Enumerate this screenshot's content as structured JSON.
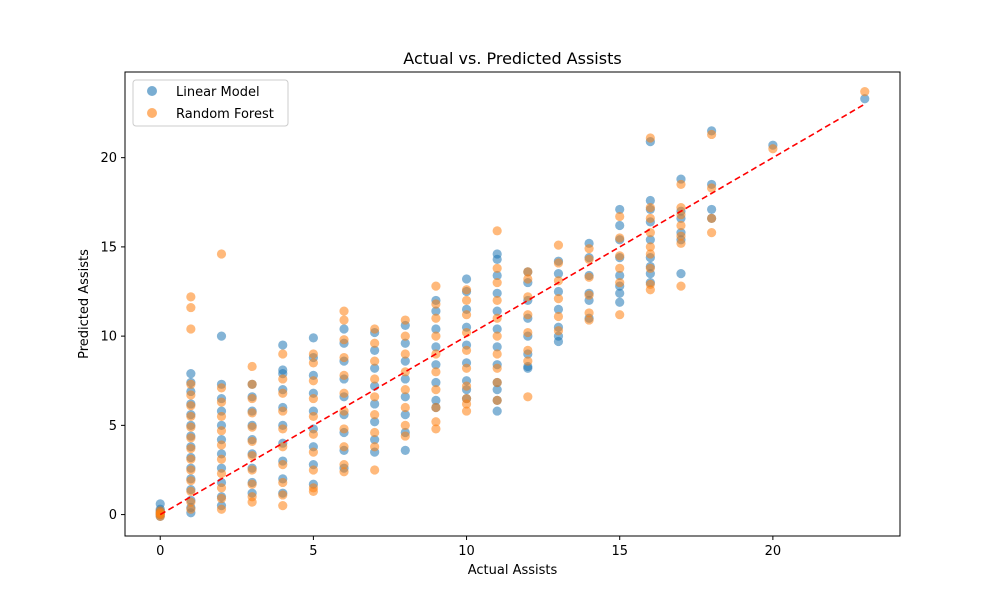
{
  "chart_data": {
    "type": "scatter",
    "title": "Actual vs. Predicted Assists",
    "xlabel": "Actual Assists",
    "ylabel": "Predicted Assists",
    "xlim": [
      -1.15,
      24.15
    ],
    "ylim": [
      -1.2,
      24.8
    ],
    "xticks": [
      0,
      5,
      10,
      15,
      20
    ],
    "yticks": [
      0,
      5,
      10,
      15,
      20
    ],
    "grid": false,
    "legend_position": "top-left",
    "reference_line": {
      "x": [
        0,
        23
      ],
      "y": [
        0,
        23
      ],
      "color": "#ff0000",
      "style": "dashed"
    },
    "series": [
      {
        "name": "Linear Model",
        "color": "#1f77b4",
        "points": [
          [
            0,
            0.6
          ],
          [
            0,
            0.3
          ],
          [
            0,
            0.1
          ],
          [
            0,
            0.0
          ],
          [
            0,
            -0.1
          ],
          [
            0,
            0.2
          ],
          [
            1,
            7.9
          ],
          [
            1,
            7.4
          ],
          [
            1,
            6.9
          ],
          [
            1,
            6.2
          ],
          [
            1,
            5.6
          ],
          [
            1,
            5.0
          ],
          [
            1,
            4.4
          ],
          [
            1,
            3.8
          ],
          [
            1,
            3.2
          ],
          [
            1,
            2.6
          ],
          [
            1,
            2.0
          ],
          [
            1,
            1.4
          ],
          [
            1,
            0.8
          ],
          [
            1,
            0.4
          ],
          [
            1,
            0.1
          ],
          [
            2,
            10.0
          ],
          [
            2,
            7.3
          ],
          [
            2,
            6.5
          ],
          [
            2,
            5.8
          ],
          [
            2,
            5.0
          ],
          [
            2,
            4.2
          ],
          [
            2,
            3.4
          ],
          [
            2,
            2.6
          ],
          [
            2,
            1.8
          ],
          [
            2,
            1.0
          ],
          [
            2,
            0.5
          ],
          [
            3,
            7.3
          ],
          [
            3,
            6.6
          ],
          [
            3,
            5.8
          ],
          [
            3,
            5.0
          ],
          [
            3,
            4.2
          ],
          [
            3,
            3.4
          ],
          [
            3,
            2.6
          ],
          [
            3,
            1.8
          ],
          [
            3,
            1.2
          ],
          [
            4,
            9.5
          ],
          [
            4,
            8.1
          ],
          [
            4,
            7.9
          ],
          [
            4,
            7.0
          ],
          [
            4,
            6.0
          ],
          [
            4,
            5.0
          ],
          [
            4,
            4.0
          ],
          [
            4,
            3.0
          ],
          [
            4,
            2.0
          ],
          [
            4,
            1.2
          ],
          [
            5,
            9.9
          ],
          [
            5,
            8.8
          ],
          [
            5,
            7.8
          ],
          [
            5,
            6.8
          ],
          [
            5,
            5.8
          ],
          [
            5,
            4.8
          ],
          [
            5,
            3.8
          ],
          [
            5,
            2.8
          ],
          [
            5,
            1.7
          ],
          [
            6,
            10.4
          ],
          [
            6,
            9.6
          ],
          [
            6,
            8.6
          ],
          [
            6,
            7.6
          ],
          [
            6,
            6.6
          ],
          [
            6,
            5.6
          ],
          [
            6,
            4.6
          ],
          [
            6,
            3.6
          ],
          [
            6,
            2.6
          ],
          [
            7,
            10.2
          ],
          [
            7,
            9.2
          ],
          [
            7,
            8.2
          ],
          [
            7,
            7.2
          ],
          [
            7,
            6.2
          ],
          [
            7,
            5.2
          ],
          [
            7,
            4.2
          ],
          [
            7,
            3.5
          ],
          [
            8,
            10.6
          ],
          [
            8,
            9.6
          ],
          [
            8,
            8.6
          ],
          [
            8,
            7.6
          ],
          [
            8,
            6.6
          ],
          [
            8,
            5.6
          ],
          [
            8,
            4.6
          ],
          [
            8,
            3.6
          ],
          [
            9,
            12.0
          ],
          [
            9,
            11.4
          ],
          [
            9,
            10.4
          ],
          [
            9,
            9.4
          ],
          [
            9,
            8.4
          ],
          [
            9,
            7.4
          ],
          [
            9,
            6.4
          ],
          [
            9,
            6.0
          ],
          [
            10,
            13.2
          ],
          [
            10,
            12.5
          ],
          [
            10,
            11.5
          ],
          [
            10,
            10.5
          ],
          [
            10,
            9.5
          ],
          [
            10,
            8.5
          ],
          [
            10,
            7.5
          ],
          [
            10,
            7.0
          ],
          [
            10,
            6.5
          ],
          [
            11,
            14.6
          ],
          [
            11,
            14.3
          ],
          [
            11,
            13.4
          ],
          [
            11,
            12.4
          ],
          [
            11,
            11.4
          ],
          [
            11,
            10.4
          ],
          [
            11,
            9.4
          ],
          [
            11,
            8.4
          ],
          [
            11,
            7.4
          ],
          [
            11,
            7.0
          ],
          [
            11,
            6.4
          ],
          [
            11,
            5.8
          ],
          [
            12,
            13.6
          ],
          [
            12,
            13.0
          ],
          [
            12,
            12.0
          ],
          [
            12,
            11.0
          ],
          [
            12,
            10.0
          ],
          [
            12,
            9.0
          ],
          [
            12,
            8.3
          ],
          [
            12,
            8.2
          ],
          [
            13,
            14.2
          ],
          [
            13,
            13.5
          ],
          [
            13,
            12.5
          ],
          [
            13,
            11.5
          ],
          [
            13,
            10.5
          ],
          [
            13,
            10.0
          ],
          [
            13,
            9.7
          ],
          [
            14,
            15.2
          ],
          [
            14,
            14.4
          ],
          [
            14,
            13.4
          ],
          [
            14,
            12.4
          ],
          [
            14,
            11.0
          ],
          [
            14,
            12.0
          ],
          [
            15,
            17.1
          ],
          [
            15,
            16.2
          ],
          [
            15,
            15.4
          ],
          [
            15,
            14.4
          ],
          [
            15,
            13.4
          ],
          [
            15,
            12.8
          ],
          [
            15,
            12.4
          ],
          [
            15,
            11.9
          ],
          [
            16,
            20.9
          ],
          [
            16,
            17.6
          ],
          [
            16,
            17.1
          ],
          [
            16,
            16.4
          ],
          [
            16,
            15.4
          ],
          [
            16,
            14.4
          ],
          [
            16,
            13.9
          ],
          [
            16,
            13.5
          ],
          [
            16,
            13.0
          ],
          [
            17,
            18.8
          ],
          [
            17,
            17.0
          ],
          [
            17,
            16.6
          ],
          [
            17,
            15.8
          ],
          [
            17,
            15.4
          ],
          [
            17,
            13.5
          ],
          [
            18,
            21.5
          ],
          [
            18,
            18.5
          ],
          [
            18,
            17.1
          ],
          [
            18,
            16.6
          ],
          [
            20,
            20.7
          ],
          [
            23,
            23.3
          ]
        ]
      },
      {
        "name": "Random Forest",
        "color": "#ff7f0e",
        "points": [
          [
            0,
            0.2
          ],
          [
            0,
            0.1
          ],
          [
            0,
            0.0
          ],
          [
            0,
            -0.1
          ],
          [
            0,
            0.05
          ],
          [
            1,
            12.2
          ],
          [
            1,
            11.6
          ],
          [
            1,
            10.4
          ],
          [
            1,
            7.3
          ],
          [
            1,
            6.7
          ],
          [
            1,
            6.1
          ],
          [
            1,
            5.5
          ],
          [
            1,
            4.9
          ],
          [
            1,
            4.3
          ],
          [
            1,
            3.7
          ],
          [
            1,
            3.1
          ],
          [
            1,
            2.5
          ],
          [
            1,
            1.9
          ],
          [
            1,
            1.3
          ],
          [
            1,
            0.7
          ],
          [
            1,
            0.3
          ],
          [
            2,
            14.6
          ],
          [
            2,
            7.1
          ],
          [
            2,
            6.3
          ],
          [
            2,
            5.5
          ],
          [
            2,
            4.7
          ],
          [
            2,
            3.9
          ],
          [
            2,
            3.1
          ],
          [
            2,
            2.3
          ],
          [
            2,
            1.5
          ],
          [
            2,
            0.9
          ],
          [
            2,
            0.3
          ],
          [
            3,
            8.3
          ],
          [
            3,
            7.3
          ],
          [
            3,
            6.5
          ],
          [
            3,
            5.7
          ],
          [
            3,
            4.9
          ],
          [
            3,
            4.1
          ],
          [
            3,
            3.3
          ],
          [
            3,
            2.5
          ],
          [
            3,
            1.7
          ],
          [
            3,
            1.0
          ],
          [
            3,
            0.7
          ],
          [
            4,
            9.0
          ],
          [
            4,
            7.6
          ],
          [
            4,
            6.8
          ],
          [
            4,
            5.8
          ],
          [
            4,
            4.8
          ],
          [
            4,
            3.8
          ],
          [
            4,
            2.8
          ],
          [
            4,
            1.8
          ],
          [
            4,
            1.1
          ],
          [
            4,
            0.5
          ],
          [
            5,
            9.0
          ],
          [
            5,
            8.5
          ],
          [
            5,
            7.5
          ],
          [
            5,
            6.5
          ],
          [
            5,
            5.5
          ],
          [
            5,
            4.5
          ],
          [
            5,
            3.5
          ],
          [
            5,
            2.5
          ],
          [
            5,
            1.5
          ],
          [
            5,
            1.3
          ],
          [
            6,
            11.4
          ],
          [
            6,
            10.9
          ],
          [
            6,
            9.8
          ],
          [
            6,
            8.8
          ],
          [
            6,
            7.8
          ],
          [
            6,
            6.8
          ],
          [
            6,
            5.8
          ],
          [
            6,
            4.8
          ],
          [
            6,
            3.8
          ],
          [
            6,
            2.8
          ],
          [
            6,
            2.4
          ],
          [
            7,
            10.4
          ],
          [
            7,
            9.6
          ],
          [
            7,
            8.6
          ],
          [
            7,
            7.6
          ],
          [
            7,
            6.6
          ],
          [
            7,
            5.6
          ],
          [
            7,
            4.6
          ],
          [
            7,
            3.8
          ],
          [
            7,
            2.5
          ],
          [
            8,
            10.9
          ],
          [
            8,
            10.0
          ],
          [
            8,
            9.0
          ],
          [
            8,
            8.0
          ],
          [
            8,
            7.0
          ],
          [
            8,
            6.0
          ],
          [
            8,
            5.0
          ],
          [
            8,
            4.4
          ],
          [
            9,
            12.8
          ],
          [
            9,
            11.8
          ],
          [
            9,
            11.0
          ],
          [
            9,
            10.0
          ],
          [
            9,
            9.0
          ],
          [
            9,
            8.0
          ],
          [
            9,
            7.0
          ],
          [
            9,
            6.0
          ],
          [
            9,
            5.2
          ],
          [
            9,
            4.8
          ],
          [
            10,
            12.6
          ],
          [
            10,
            12.0
          ],
          [
            10,
            11.2
          ],
          [
            10,
            10.2
          ],
          [
            10,
            9.2
          ],
          [
            10,
            8.2
          ],
          [
            10,
            7.2
          ],
          [
            10,
            6.5
          ],
          [
            10,
            6.2
          ],
          [
            10,
            5.8
          ],
          [
            11,
            15.9
          ],
          [
            11,
            13.8
          ],
          [
            11,
            13.0
          ],
          [
            11,
            12.0
          ],
          [
            11,
            11.0
          ],
          [
            11,
            10.0
          ],
          [
            11,
            9.0
          ],
          [
            11,
            8.2
          ],
          [
            11,
            7.4
          ],
          [
            11,
            6.4
          ],
          [
            12,
            13.6
          ],
          [
            12,
            13.2
          ],
          [
            12,
            12.2
          ],
          [
            12,
            11.2
          ],
          [
            12,
            10.2
          ],
          [
            12,
            9.2
          ],
          [
            12,
            8.6
          ],
          [
            12,
            6.6
          ],
          [
            13,
            15.1
          ],
          [
            13,
            14.1
          ],
          [
            13,
            13.1
          ],
          [
            13,
            12.1
          ],
          [
            13,
            11.1
          ],
          [
            13,
            10.3
          ],
          [
            14,
            14.9
          ],
          [
            14,
            14.3
          ],
          [
            14,
            13.3
          ],
          [
            14,
            12.3
          ],
          [
            14,
            11.3
          ],
          [
            14,
            10.9
          ],
          [
            15,
            16.7
          ],
          [
            15,
            15.5
          ],
          [
            15,
            14.5
          ],
          [
            15,
            13.8
          ],
          [
            15,
            13.0
          ],
          [
            15,
            11.2
          ],
          [
            16,
            21.1
          ],
          [
            16,
            17.2
          ],
          [
            16,
            16.6
          ],
          [
            16,
            15.8
          ],
          [
            16,
            15.0
          ],
          [
            16,
            14.6
          ],
          [
            16,
            13.8
          ],
          [
            16,
            12.9
          ],
          [
            16,
            12.6
          ],
          [
            17,
            18.5
          ],
          [
            17,
            17.2
          ],
          [
            17,
            16.8
          ],
          [
            17,
            16.2
          ],
          [
            17,
            15.6
          ],
          [
            17,
            15.2
          ],
          [
            17,
            12.8
          ],
          [
            18,
            21.3
          ],
          [
            18,
            18.3
          ],
          [
            18,
            16.6
          ],
          [
            18,
            15.8
          ],
          [
            20,
            20.5
          ],
          [
            23,
            23.7
          ]
        ]
      }
    ]
  }
}
